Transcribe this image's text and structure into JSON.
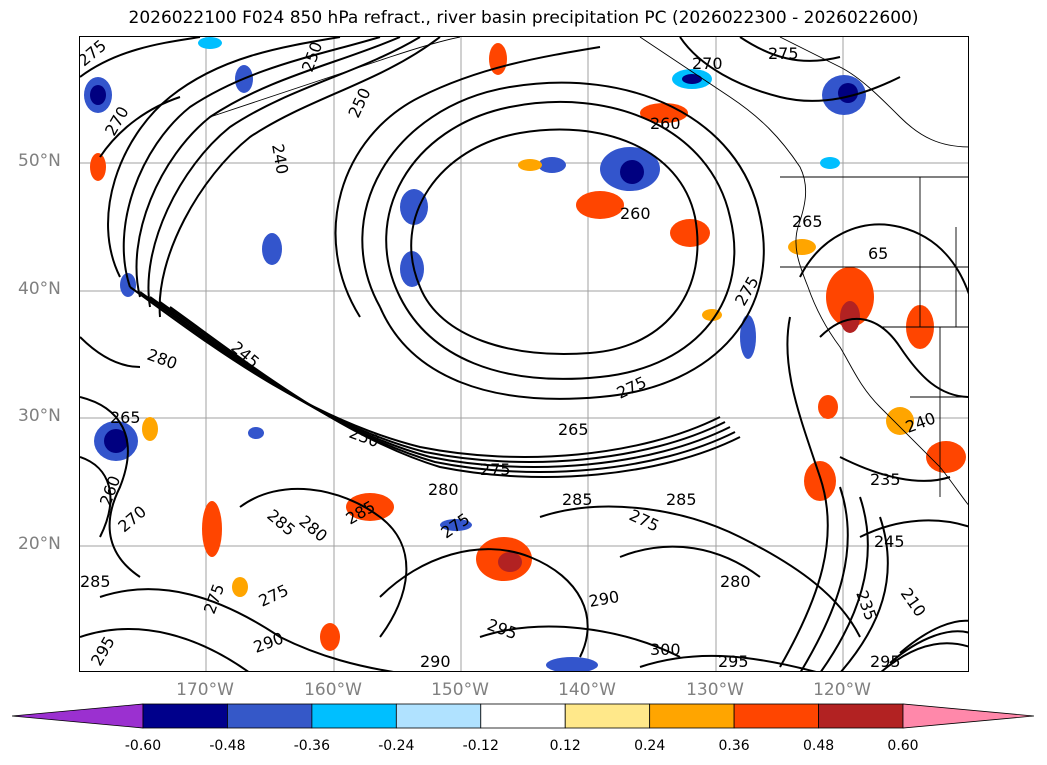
{
  "title": "2026022100 F024 850 hPa refract., river basin precipitation PC (2026022300 - 2026022600)",
  "map": {
    "lat_labels": [
      "50°N",
      "40°N",
      "30°N",
      "20°N"
    ],
    "lon_labels": [
      "170°W",
      "160°W",
      "150°W",
      "140°W",
      "130°W",
      "120°W"
    ],
    "contour_labels": [
      "275",
      "270",
      "250",
      "240",
      "250",
      "270",
      "275",
      "260",
      "260",
      "265",
      "275",
      "65",
      "280",
      "245",
      "265",
      "250",
      "275",
      "265",
      "260",
      "270",
      "275",
      "280",
      "285",
      "285",
      "285",
      "280",
      "275",
      "285",
      "275",
      "275",
      "280",
      "285",
      "275",
      "290",
      "295",
      "290",
      "300",
      "295",
      "290",
      "295",
      "240",
      "235",
      "245",
      "235",
      "210",
      "295"
    ],
    "colors": {
      "contour": "#000000",
      "grid": "#a0a0a0",
      "coast": "#000000",
      "neg_strong": "#000080",
      "neg_mid": "#3355cc",
      "neg_light": "#00bfff",
      "pos_light": "#ffe88a",
      "pos_mid": "#ffa500",
      "pos_strong": "#ff4500",
      "pos_dark": "#b22222"
    }
  },
  "colorbar": {
    "ticks": [
      "-0.60",
      "-0.48",
      "-0.36",
      "-0.24",
      "-0.12",
      "0.12",
      "0.24",
      "0.36",
      "0.48",
      "0.60"
    ],
    "colors": [
      "#9b30d0",
      "#00008b",
      "#3558c8",
      "#00bfff",
      "#b0e2ff",
      "#ffffff",
      "#ffe88a",
      "#ffa500",
      "#ff4500",
      "#b22222",
      "#ff88aa"
    ]
  }
}
